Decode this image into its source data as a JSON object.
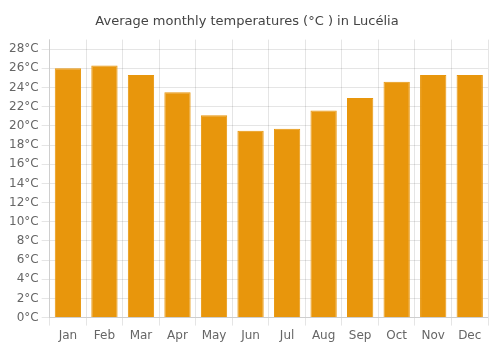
{
  "chart_data": {
    "type": "bar",
    "title": "Average monthly temperatures (°C ) in Lucélia",
    "categories": [
      "Jan",
      "Feb",
      "Mar",
      "Apr",
      "May",
      "Jun",
      "Jul",
      "Aug",
      "Sep",
      "Oct",
      "Nov",
      "Dec"
    ],
    "values": [
      26.0,
      26.3,
      25.3,
      23.5,
      21.1,
      19.5,
      19.7,
      21.6,
      22.9,
      24.6,
      25.3,
      25.3
    ],
    "color": "#E8960C",
    "ylim": [
      0,
      29
    ],
    "yticks": [
      {
        "value": 0,
        "label": "0°C"
      },
      {
        "value": 2,
        "label": "2°C"
      },
      {
        "value": 4,
        "label": "4°C"
      },
      {
        "value": 6,
        "label": "6°C"
      },
      {
        "value": 8,
        "label": "8°C"
      },
      {
        "value": 10,
        "label": "10°C"
      },
      {
        "value": 12,
        "label": "12°C"
      },
      {
        "value": 14,
        "label": "14°C"
      },
      {
        "value": 16,
        "label": "16°C"
      },
      {
        "value": 18,
        "label": "18°C"
      },
      {
        "value": 20,
        "label": "20°C"
      },
      {
        "value": 22,
        "label": "22°C"
      },
      {
        "value": 24,
        "label": "24°C"
      },
      {
        "value": 26,
        "label": "26°C"
      },
      {
        "value": 28,
        "label": "28°C"
      }
    ],
    "grid": true
  }
}
